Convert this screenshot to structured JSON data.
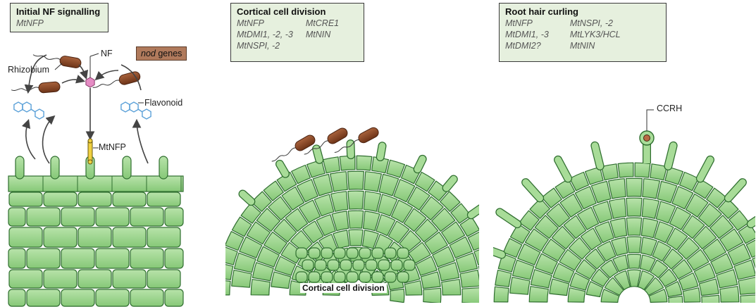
{
  "panels": [
    {
      "title": "Initial NF signalling",
      "genes_left": [
        "MtNFP"
      ],
      "genes_right": []
    },
    {
      "title": "Cortical cell division",
      "genes_left": [
        "MtNFP",
        "MtDMI1, -2, -3",
        "MtNSPI, -2"
      ],
      "genes_right": [
        "MtCRE1",
        "MtNIN"
      ]
    },
    {
      "title": "Root hair curling",
      "genes_left": [
        "MtNFP",
        "MtDMI1, -3",
        "MtDMI2?"
      ],
      "genes_right": [
        "MtNSPI, -2",
        "MtLYK3/HCL",
        "MtNIN"
      ]
    }
  ],
  "labels": {
    "nf": "NF",
    "rhizobium": "Rhizobium",
    "flavonoid": "Flavonoid",
    "mtnfp": "MtNFP",
    "nod_word": "nod",
    "nod_rest": " genes",
    "ccrh": "CCRH",
    "cortical": "Cortical cell division"
  },
  "colors": {
    "cell_fill": "#9dd48f",
    "cell_stroke": "#2f6e2f",
    "bacterium": "#8b4a2b",
    "flavonoid": "#5aa0d8",
    "nf": "#e58cc4",
    "box_fill": "#e6f0de"
  }
}
